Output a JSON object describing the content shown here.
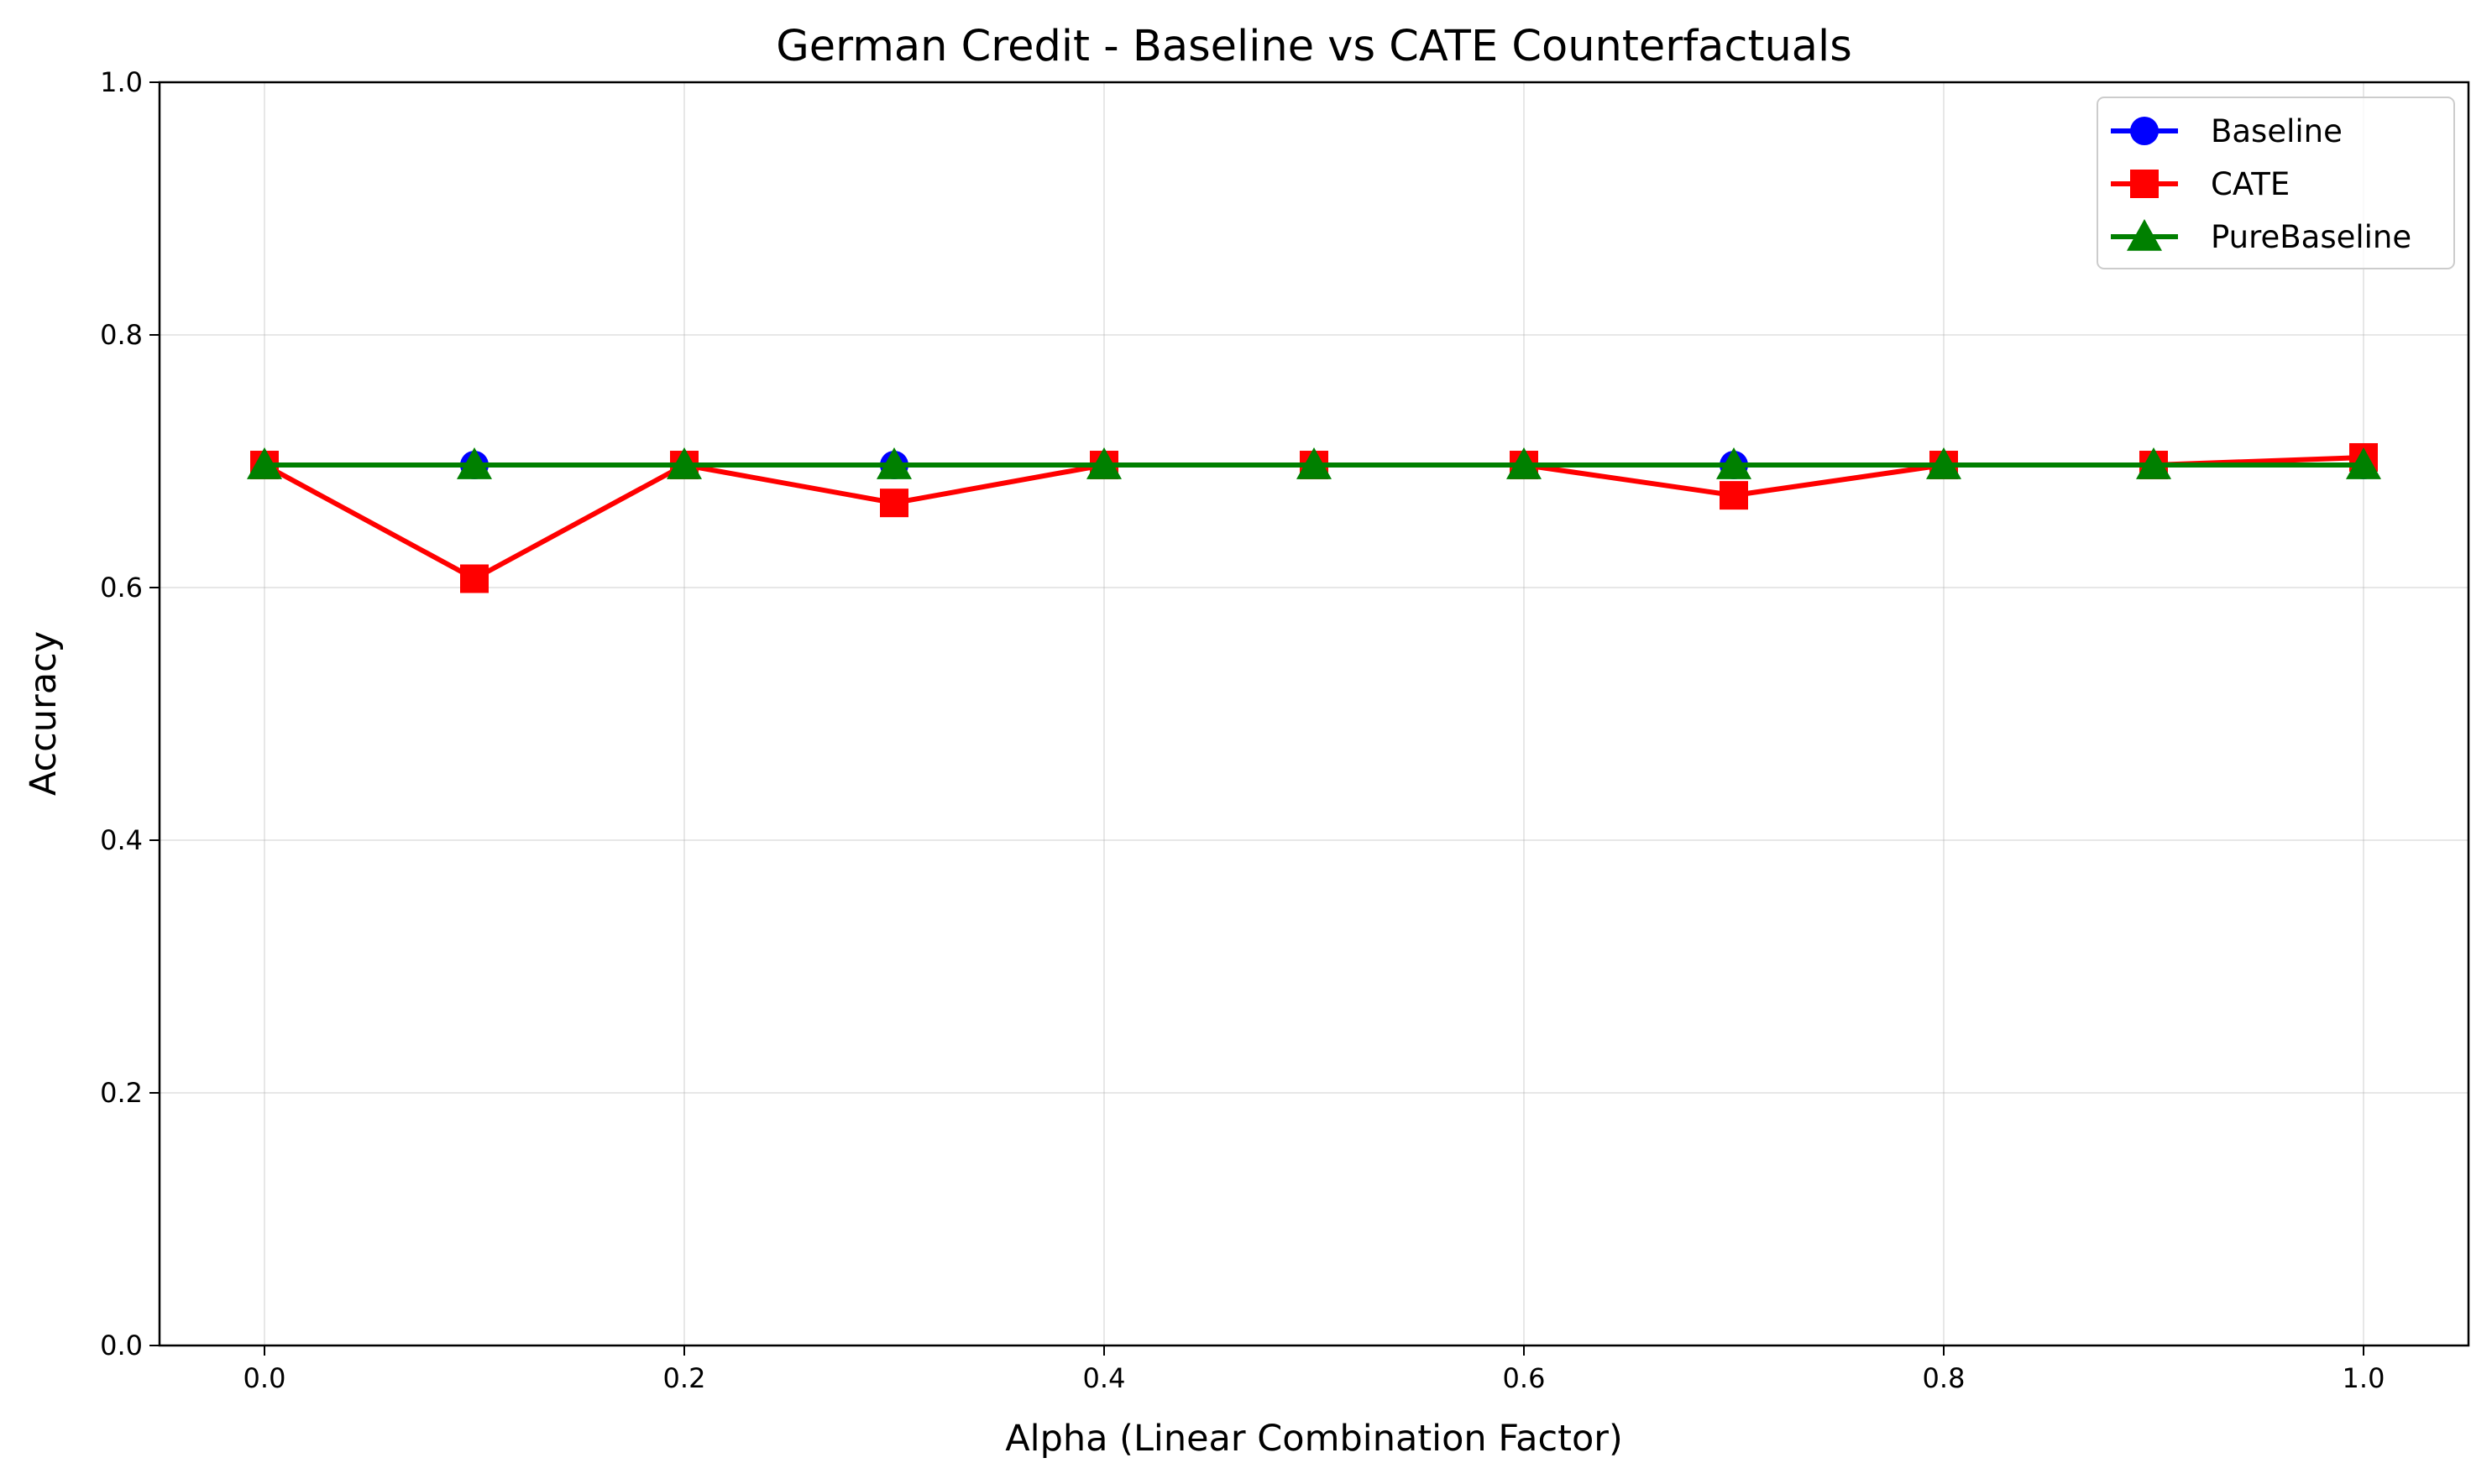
{
  "chart_data": {
    "type": "line",
    "title": "German Credit - Baseline vs CATE Counterfactuals",
    "xlabel": "Alpha (Linear Combination Factor)",
    "ylabel": "Accuracy",
    "x": [
      0.0,
      0.1,
      0.2,
      0.3,
      0.4,
      0.5,
      0.6,
      0.7,
      0.8,
      0.9,
      1.0
    ],
    "xlim": [
      -0.05,
      1.05
    ],
    "ylim": [
      0.0,
      1.0
    ],
    "xticks": [
      "0.0",
      "0.2",
      "0.4",
      "0.6",
      "0.8",
      "1.0"
    ],
    "xtick_values": [
      0.0,
      0.2,
      0.4,
      0.6,
      0.8,
      1.0
    ],
    "yticks": [
      "0.0",
      "0.2",
      "0.4",
      "0.6",
      "0.8",
      "1.0"
    ],
    "ytick_values": [
      0.0,
      0.2,
      0.4,
      0.6,
      0.8,
      1.0
    ],
    "grid": true,
    "legend_position": "top-right",
    "series": [
      {
        "name": "Baseline",
        "color": "#0000ff",
        "marker": "circle",
        "values": [
          0.697,
          0.697,
          0.697,
          0.697,
          0.697,
          0.697,
          0.697,
          0.697,
          0.697,
          0.697,
          0.697
        ]
      },
      {
        "name": "CATE",
        "color": "#ff0000",
        "marker": "square",
        "values": [
          0.697,
          0.607,
          0.697,
          0.667,
          0.697,
          0.697,
          0.697,
          0.673,
          0.697,
          0.697,
          0.703
        ]
      },
      {
        "name": "PureBaseline",
        "color": "#008000",
        "marker": "triangle",
        "values": [
          0.697,
          0.697,
          0.697,
          0.697,
          0.697,
          0.697,
          0.697,
          0.697,
          0.697,
          0.697,
          0.697
        ]
      }
    ]
  }
}
